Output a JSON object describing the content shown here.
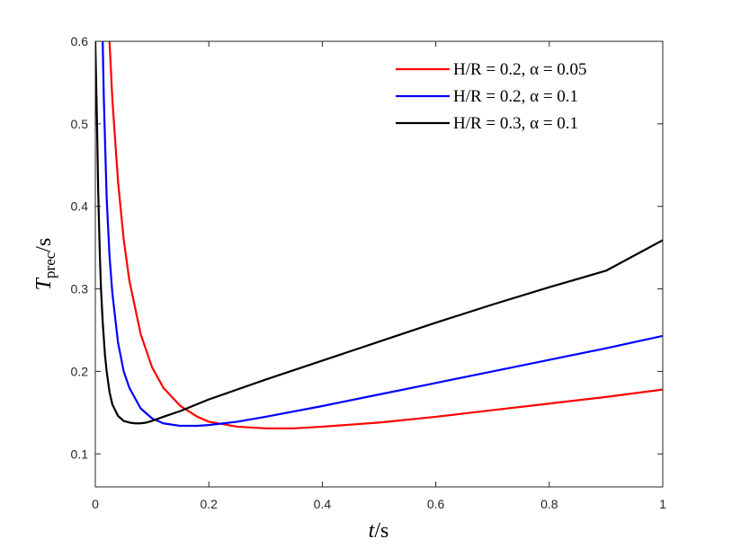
{
  "chart_data": {
    "type": "line",
    "title": "",
    "xlabel": "t/s",
    "ylabel": "T_prec/s",
    "xlabel_display": {
      "main": "t",
      "unit": "/s"
    },
    "ylabel_display": {
      "main": "T",
      "sub": "prec",
      "unit": "/s"
    },
    "xlim": [
      0,
      1
    ],
    "ylim": [
      0.06,
      0.6
    ],
    "xticks": [
      0,
      0.2,
      0.4,
      0.6,
      0.8,
      1
    ],
    "xtick_labels": [
      "0",
      "0.2",
      "0.4",
      "0.6",
      "0.8",
      "1"
    ],
    "yticks": [
      0.1,
      0.2,
      0.3,
      0.4,
      0.5,
      0.6
    ],
    "ytick_labels": [
      "0.1",
      "0.2",
      "0.3",
      "0.4",
      "0.5",
      "0.6"
    ],
    "grid": false,
    "legend_position": "top-right",
    "series": [
      {
        "name": "H/R = 0.2, α = 0.05",
        "color": "#ff0000",
        "x": [
          0.025,
          0.03,
          0.04,
          0.05,
          0.06,
          0.08,
          0.1,
          0.12,
          0.15,
          0.18,
          0.2,
          0.25,
          0.3,
          0.35,
          0.4,
          0.5,
          0.6,
          0.7,
          0.8,
          0.9,
          1.0
        ],
        "y": [
          0.6,
          0.53,
          0.43,
          0.36,
          0.31,
          0.245,
          0.205,
          0.18,
          0.158,
          0.145,
          0.139,
          0.133,
          0.131,
          0.131,
          0.133,
          0.138,
          0.145,
          0.153,
          0.161,
          0.169,
          0.178
        ]
      },
      {
        "name": "H/R = 0.2, α = 0.1",
        "color": "#0000ff",
        "x": [
          0.013,
          0.015,
          0.02,
          0.025,
          0.03,
          0.04,
          0.05,
          0.06,
          0.08,
          0.1,
          0.12,
          0.15,
          0.18,
          0.2,
          0.25,
          0.3,
          0.4,
          0.5,
          0.6,
          0.7,
          0.8,
          0.9,
          1.0
        ],
        "y": [
          0.6,
          0.53,
          0.41,
          0.34,
          0.295,
          0.235,
          0.2,
          0.18,
          0.155,
          0.143,
          0.137,
          0.134,
          0.134,
          0.135,
          0.139,
          0.145,
          0.158,
          0.172,
          0.186,
          0.2,
          0.214,
          0.228,
          0.243
        ]
      },
      {
        "name": "H/R = 0.3, α = 0.1",
        "color": "#000000",
        "x": [
          0.0,
          0.003,
          0.005,
          0.008,
          0.01,
          0.013,
          0.017,
          0.02,
          0.025,
          0.03,
          0.04,
          0.05,
          0.06,
          0.07,
          0.08,
          0.09,
          0.1,
          0.12,
          0.15,
          0.2,
          0.3,
          0.4,
          0.5,
          0.6,
          0.7,
          0.8,
          0.9,
          1.0
        ],
        "y": [
          0.6,
          0.5,
          0.42,
          0.34,
          0.3,
          0.26,
          0.22,
          0.2,
          0.175,
          0.16,
          0.146,
          0.14,
          0.138,
          0.137,
          0.137,
          0.138,
          0.14,
          0.145,
          0.152,
          0.166,
          0.19,
          0.213,
          0.236,
          0.259,
          0.281,
          0.302,
          0.322,
          0.359
        ]
      }
    ]
  }
}
